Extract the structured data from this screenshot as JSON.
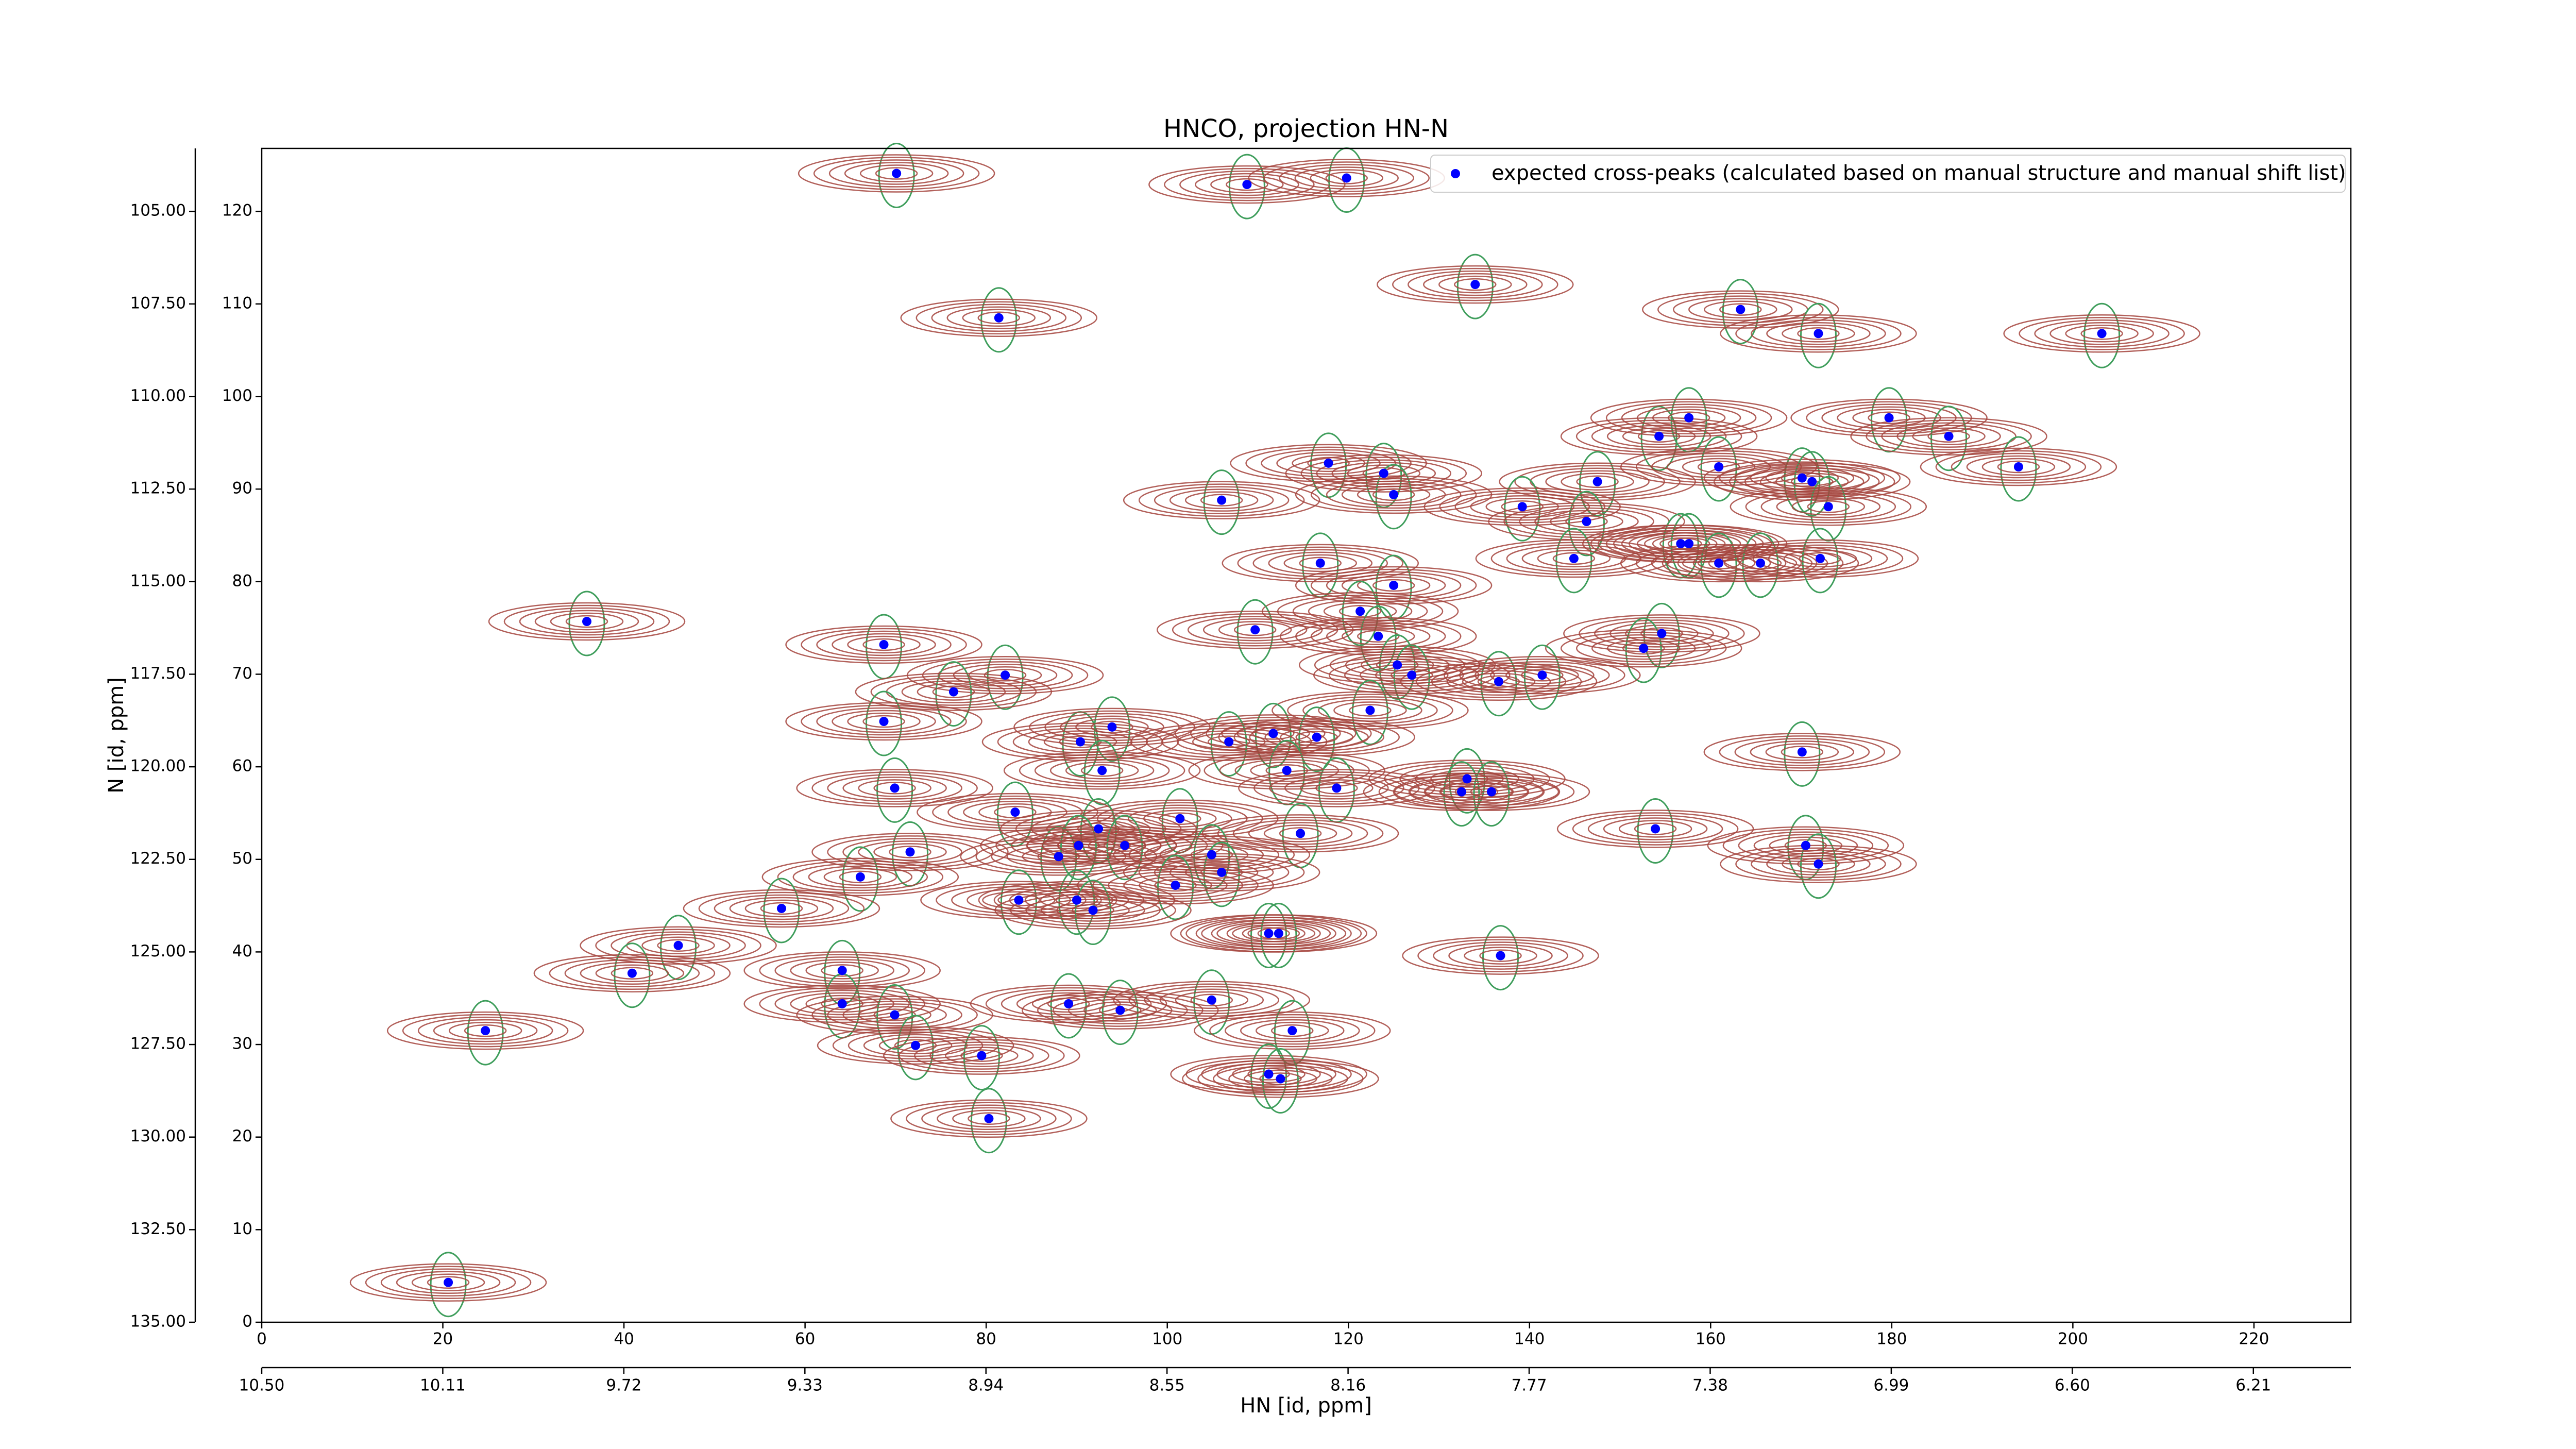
{
  "chart_data": {
    "type": "scatter",
    "title": "HNCO, projection HN-N",
    "x_label": "HN [id, ppm]",
    "y_label": "N [id, ppm]",
    "legend": "upper right",
    "contour_colors": [
      "#a5443d",
      "#3f9e5c"
    ],
    "series": [
      {
        "name": "expected cross-peaks (calculated based on manual structure and manual shift list)",
        "color": "#0000ff",
        "x": [
          70.1,
          108.8,
          119.8,
          134.0,
          81.4,
          163.3,
          171.9,
          203.2,
          179.7,
          186.3,
          154.3,
          157.6,
          160.9,
          194.0,
          117.8,
          123.9,
          125.0,
          106.0,
          147.5,
          139.2,
          146.3,
          144.9,
          156.7,
          157.6,
          160.9,
          165.5,
          170.1,
          171.2,
          173.0,
          172.1,
          116.9,
          125.0,
          121.3,
          109.7,
          35.9,
          68.7,
          123.3,
          125.4,
          127.0,
          154.6,
          152.6,
          82.1,
          76.4,
          136.6,
          141.4,
          68.7,
          122.4,
          111.7,
          116.5,
          106.8,
          90.4,
          93.9,
          170.1,
          92.8,
          113.2,
          133.1,
          132.5,
          135.8,
          118.7,
          69.9,
          83.2,
          101.4,
          114.7,
          92.4,
          153.9,
          170.5,
          171.9,
          71.6,
          88.0,
          90.2,
          95.3,
          104.9,
          66.1,
          106.0,
          100.9,
          57.4,
          83.6,
          90.0,
          91.8,
          46.0,
          111.2,
          112.3,
          136.8,
          40.9,
          64.1,
          64.1,
          89.1,
          94.8,
          104.9,
          69.9,
          24.7,
          113.8,
          72.2,
          79.5,
          111.2,
          112.5,
          80.3,
          20.6
        ],
        "y": [
          124.1,
          122.9,
          123.6,
          112.1,
          108.5,
          109.4,
          106.8,
          106.8,
          97.7,
          95.7,
          95.7,
          97.7,
          92.4,
          92.4,
          92.8,
          91.7,
          89.4,
          88.8,
          90.8,
          88.1,
          86.5,
          82.5,
          84.1,
          84.1,
          82.0,
          82.0,
          91.2,
          90.8,
          88.1,
          82.5,
          82.0,
          79.6,
          76.8,
          74.8,
          75.7,
          73.2,
          74.1,
          71.0,
          69.9,
          74.4,
          72.8,
          69.9,
          68.1,
          69.2,
          69.9,
          64.9,
          66.1,
          63.6,
          63.2,
          62.7,
          62.7,
          64.3,
          61.6,
          59.6,
          59.6,
          58.7,
          57.3,
          57.3,
          57.7,
          57.7,
          55.1,
          54.4,
          52.8,
          53.3,
          53.3,
          51.5,
          49.5,
          50.8,
          50.3,
          51.5,
          51.5,
          50.5,
          48.1,
          48.6,
          47.2,
          44.7,
          45.6,
          45.6,
          44.5,
          40.7,
          42.0,
          42.0,
          39.6,
          37.7,
          38.0,
          34.4,
          34.4,
          33.7,
          34.8,
          33.2,
          31.5,
          31.5,
          29.9,
          28.8,
          26.8,
          26.3,
          22.0,
          4.3
        ]
      }
    ],
    "xlim": [
      0,
      230.7
    ],
    "xticks": [
      0,
      20,
      40,
      60,
      80,
      100,
      120,
      140,
      160,
      180,
      200,
      220
    ],
    "ylim": [
      0,
      126.8
    ],
    "yticks": [
      0,
      10,
      20,
      30,
      40,
      50,
      60,
      70,
      80,
      90,
      100,
      110,
      120
    ],
    "x2lim": [
      10.5,
      6.0
    ],
    "x2ticks": [
      {
        "value": 10.5,
        "label": "10.50"
      },
      10.11,
      9.72,
      9.33,
      8.94,
      8.55,
      8.16,
      7.77,
      7.38,
      6.99,
      {
        "value": 6.6,
        "label": "6.60"
      },
      6.21
    ],
    "y2lim": [
      135,
      103.3
    ],
    "y2ticks": [
      {
        "value": 105,
        "label": "105.00"
      },
      {
        "value": 107.5,
        "label": "107.50"
      },
      {
        "value": 110,
        "label": "110.00"
      },
      {
        "value": 112.5,
        "label": "112.50"
      },
      {
        "value": 115,
        "label": "115.00"
      },
      {
        "value": 117.5,
        "label": "117.50"
      },
      {
        "value": 120,
        "label": "120.00"
      },
      {
        "value": 122.5,
        "label": "122.50"
      },
      {
        "value": 125,
        "label": "125.00"
      },
      {
        "value": 127.5,
        "label": "127.50"
      },
      {
        "value": 130,
        "label": "130.00"
      },
      {
        "value": 132.5,
        "label": "132.50"
      },
      {
        "value": 135,
        "label": "135.00"
      }
    ]
  }
}
